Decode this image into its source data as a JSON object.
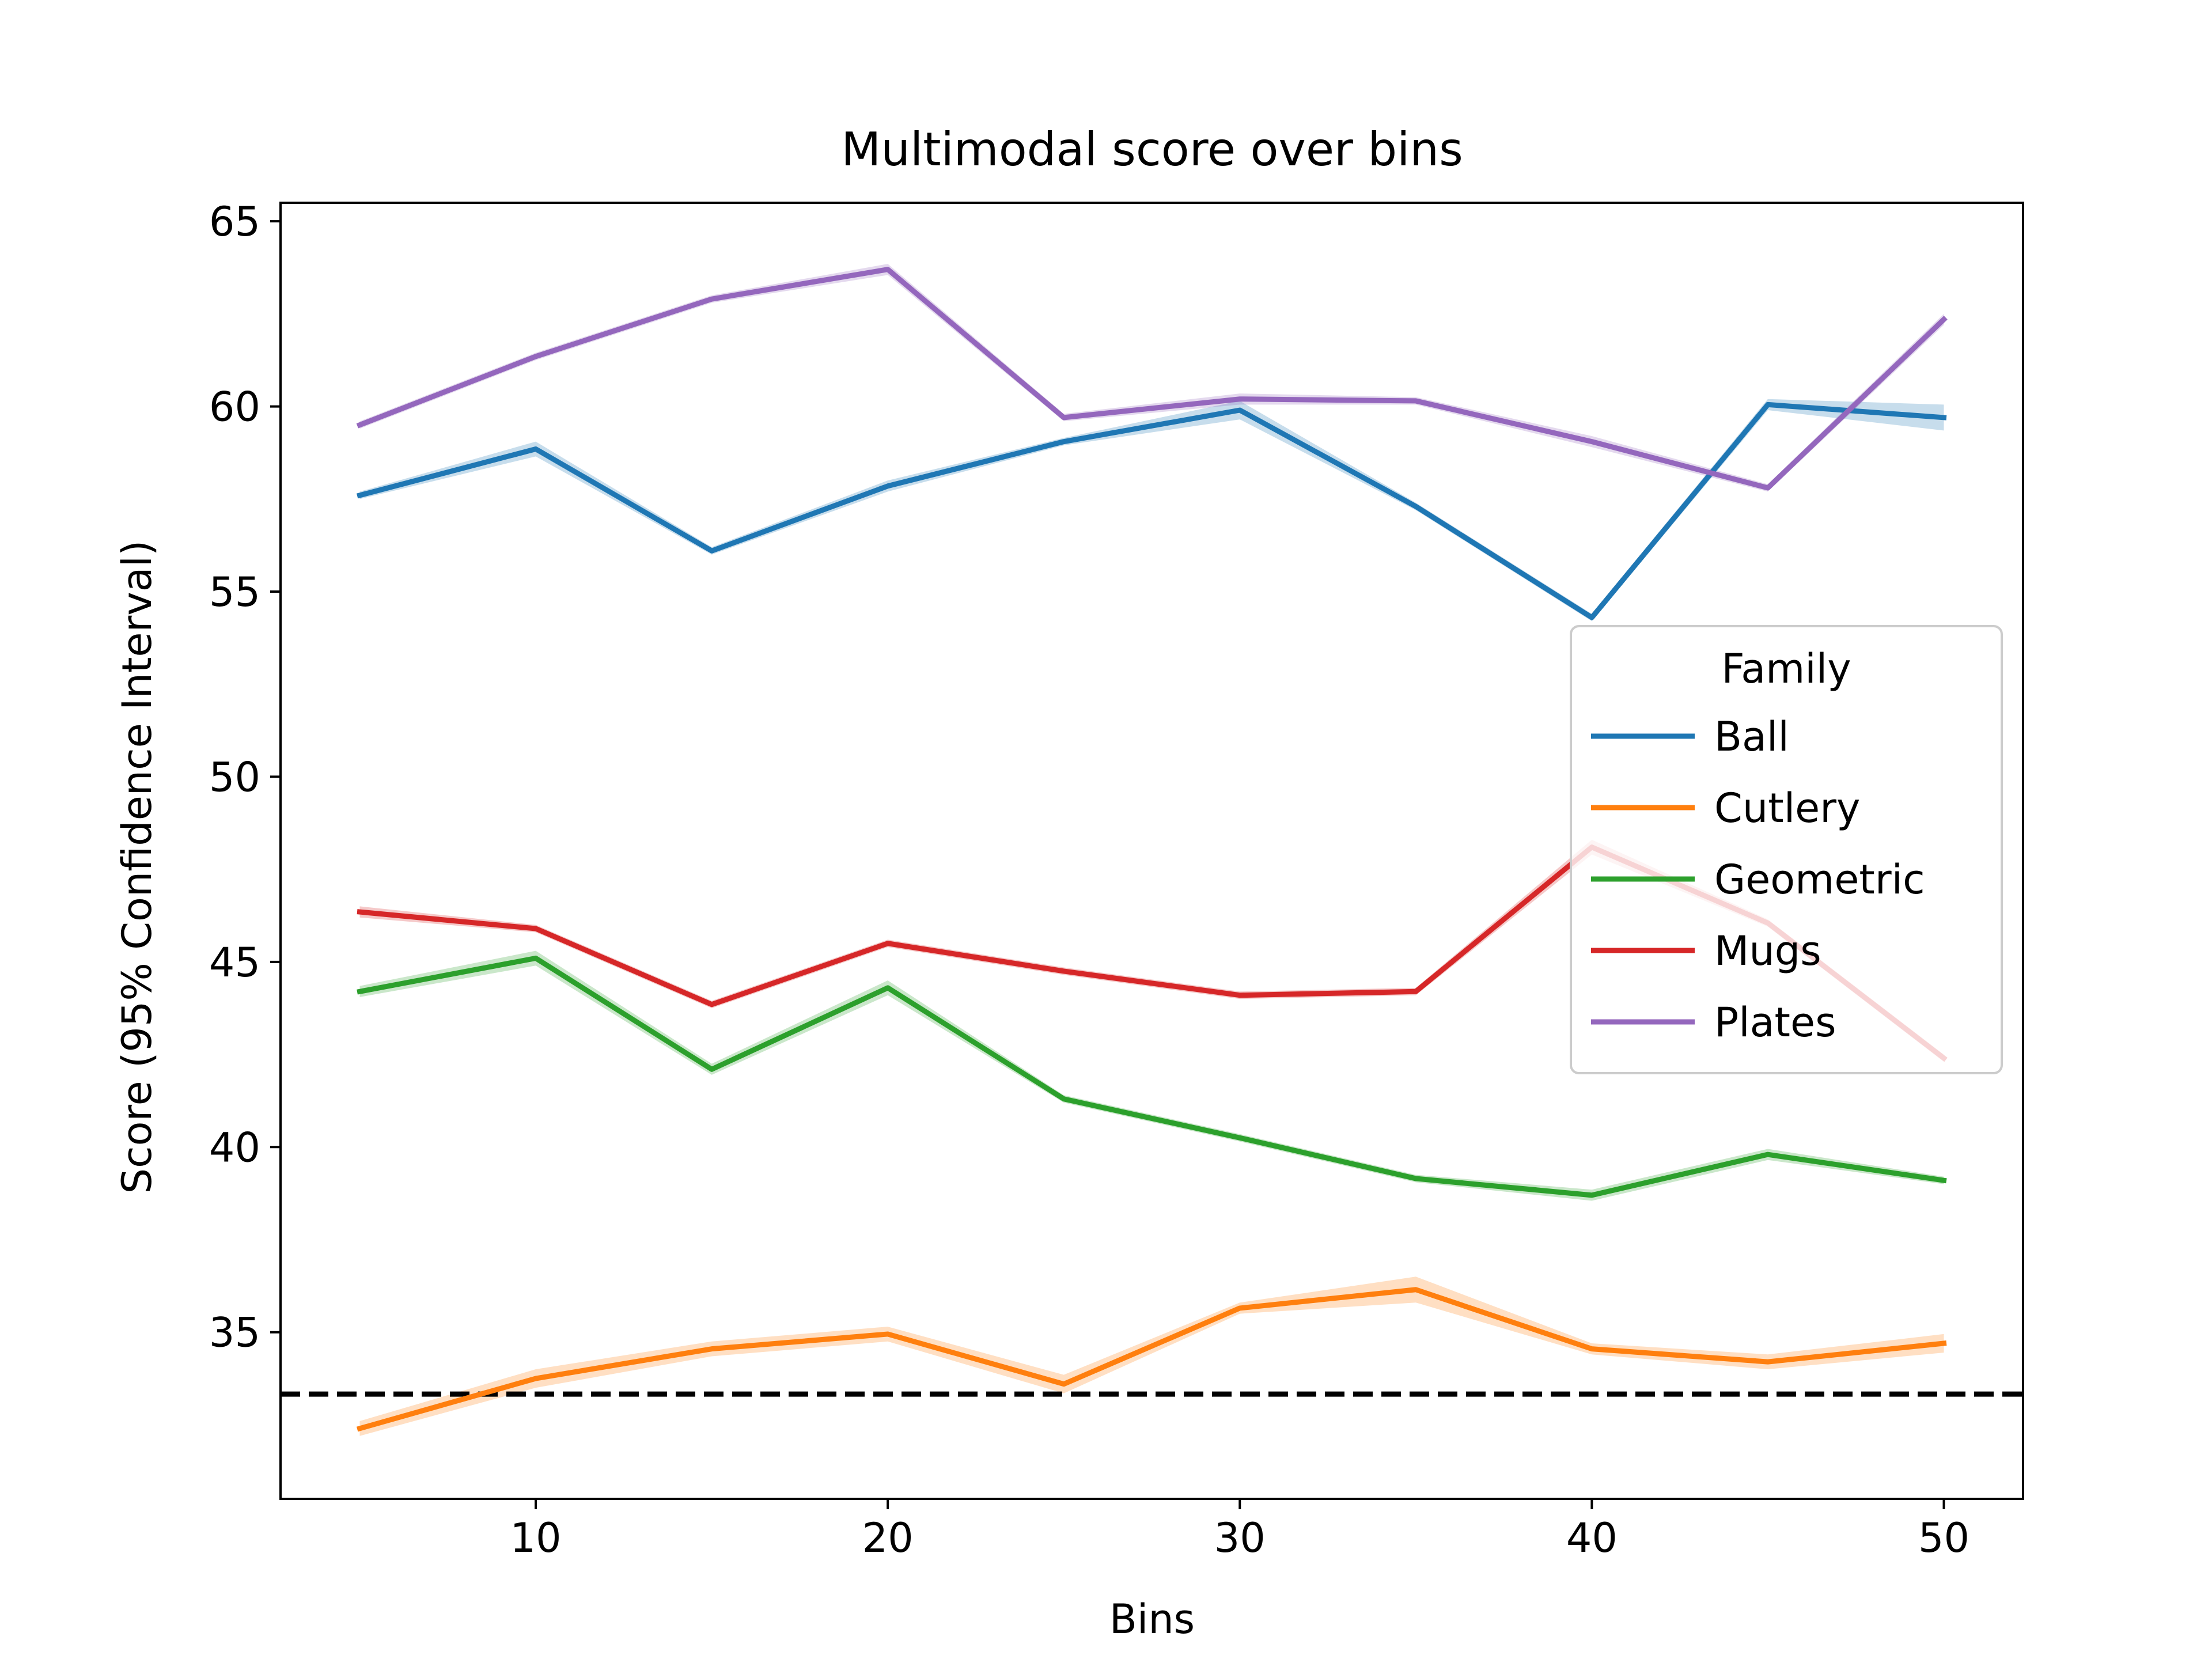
{
  "chart_data": {
    "type": "line",
    "title": "Multimodal score over bins",
    "xlabel": "Bins",
    "ylabel": "Score (95% Confidence Interval)",
    "xlim": [
      2.75,
      52.25
    ],
    "ylim": [
      30.5,
      65.5
    ],
    "xticks": [
      10,
      20,
      30,
      40,
      50
    ],
    "yticks": [
      35,
      40,
      45,
      50,
      55,
      60,
      65
    ],
    "x": [
      5,
      10,
      15,
      20,
      25,
      30,
      35,
      40,
      45,
      50
    ],
    "legend": {
      "title": "Family",
      "position": "center-right"
    },
    "series": [
      {
        "name": "Ball",
        "color": "#1f77b4",
        "values": [
          57.6,
          58.85,
          56.1,
          57.85,
          59.05,
          59.9,
          57.3,
          54.3,
          60.05,
          59.7
        ],
        "ci": [
          0.1,
          0.2,
          0.1,
          0.15,
          0.1,
          0.25,
          0.1,
          0.1,
          0.15,
          0.35
        ]
      },
      {
        "name": "Cutlery",
        "color": "#ff7f0e",
        "values": [
          32.4,
          33.75,
          34.55,
          34.95,
          33.6,
          35.65,
          36.15,
          34.55,
          34.2,
          34.7
        ],
        "ci": [
          0.2,
          0.25,
          0.2,
          0.2,
          0.25,
          0.15,
          0.35,
          0.15,
          0.2,
          0.25
        ]
      },
      {
        "name": "Geometric",
        "color": "#2ca02c",
        "values": [
          44.2,
          45.1,
          42.1,
          44.3,
          41.3,
          40.25,
          39.15,
          38.7,
          39.8,
          39.1
        ],
        "ci": [
          0.15,
          0.2,
          0.15,
          0.2,
          0.1,
          0.1,
          0.1,
          0.15,
          0.15,
          0.1
        ]
      },
      {
        "name": "Mugs",
        "color": "#d62728",
        "values": [
          46.35,
          45.9,
          43.85,
          45.5,
          44.75,
          44.1,
          44.2,
          48.1,
          46.05,
          42.4
        ],
        "ci": [
          0.15,
          0.1,
          0.1,
          0.1,
          0.1,
          0.1,
          0.1,
          0.2,
          0.1,
          0.1
        ]
      },
      {
        "name": "Plates",
        "color": "#9467bd",
        "values": [
          59.5,
          61.35,
          62.9,
          63.7,
          59.7,
          60.2,
          60.15,
          59.05,
          57.8,
          62.35
        ],
        "ci": [
          0.1,
          0.1,
          0.1,
          0.15,
          0.1,
          0.15,
          0.1,
          0.15,
          0.1,
          0.15
        ]
      }
    ],
    "reference_line": {
      "y": 33.33,
      "color": "#000000",
      "style": "dashed"
    }
  }
}
